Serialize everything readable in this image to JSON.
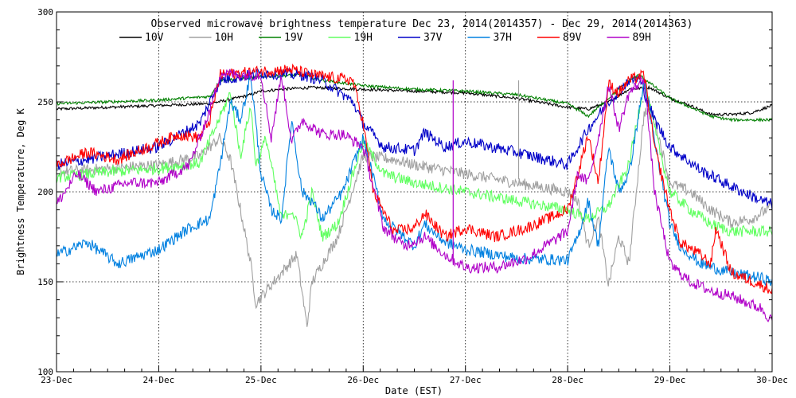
{
  "chart_data": {
    "type": "line",
    "title": "Observed microwave brightness temperature Dec 23, 2014(2014357) - Dec 29, 2014(2014363)",
    "xlabel": "Date (EST)",
    "ylabel": "Brightness Temperature, Deg K",
    "xlim": [
      0,
      7
    ],
    "ylim": [
      100,
      300
    ],
    "x_unit": "days since 23-Dec 00:00",
    "grid": true,
    "categories": [
      "23-Dec",
      "24-Dec",
      "25-Dec",
      "26-Dec",
      "27-Dec",
      "28-Dec",
      "29-Dec",
      "30-Dec"
    ],
    "xticks": [
      0,
      1,
      2,
      3,
      4,
      5,
      6,
      7
    ],
    "yticks": [
      100,
      150,
      200,
      250,
      300
    ],
    "ytick_labels": [
      "100",
      "150",
      "200",
      "250",
      "300"
    ],
    "legend": "top",
    "series": [
      {
        "name": "10V",
        "color": "#000000",
        "x": [
          0,
          0.5,
          1.0,
          1.5,
          1.75,
          1.9,
          2.0,
          2.2,
          2.5,
          3.0,
          3.5,
          4.0,
          4.5,
          5.0,
          5.2,
          5.4,
          5.6,
          5.8,
          6.0,
          6.2,
          6.4,
          6.6,
          6.8,
          7.0
        ],
        "y": [
          246,
          247,
          248,
          249,
          252,
          254,
          256,
          257,
          258,
          257,
          256,
          255,
          252,
          247,
          246,
          250,
          257,
          258,
          252,
          248,
          243,
          243,
          244,
          248
        ]
      },
      {
        "name": "10H",
        "color": "#a0a0a0",
        "x": [
          0,
          0.5,
          1.0,
          1.4,
          1.6,
          1.7,
          1.8,
          1.9,
          1.95,
          2.05,
          2.2,
          2.35,
          2.45,
          2.5,
          2.6,
          2.75,
          3.0,
          3.3,
          3.5,
          4.0,
          4.5,
          5.0,
          5.1,
          5.2,
          5.3,
          5.4,
          5.5,
          5.6,
          5.75,
          5.85,
          6.0,
          6.2,
          6.4,
          6.6,
          6.8,
          7.0
        ],
        "y": [
          211,
          213,
          215,
          220,
          230,
          218,
          190,
          160,
          138,
          145,
          155,
          165,
          125,
          150,
          160,
          175,
          220,
          218,
          215,
          210,
          205,
          200,
          195,
          170,
          185,
          148,
          175,
          160,
          245,
          240,
          205,
          200,
          190,
          183,
          185,
          192
        ]
      },
      {
        "name": "19V",
        "color": "#008000",
        "x": [
          0,
          0.5,
          1.0,
          1.5,
          1.6,
          2.0,
          2.4,
          2.6,
          3.0,
          3.5,
          4.0,
          4.5,
          5.0,
          5.2,
          5.4,
          5.6,
          5.7,
          6.0,
          6.2,
          6.4,
          6.6,
          6.8,
          7.0
        ],
        "y": [
          249,
          250,
          251,
          253,
          262,
          264,
          265,
          262,
          259,
          257,
          256,
          254,
          249,
          242,
          252,
          262,
          265,
          252,
          247,
          242,
          240,
          240,
          240
        ]
      },
      {
        "name": "19H",
        "color": "#60ff60",
        "x": [
          0,
          0.5,
          1.0,
          1.4,
          1.55,
          1.7,
          1.8,
          1.9,
          1.95,
          2.05,
          2.2,
          2.3,
          2.4,
          2.5,
          2.6,
          2.75,
          2.9,
          3.0,
          3.2,
          3.5,
          4.0,
          4.5,
          5.0,
          5.2,
          5.4,
          5.6,
          5.75,
          5.85,
          6.0,
          6.2,
          6.4,
          6.6,
          6.8,
          7.0
        ],
        "y": [
          208,
          211,
          213,
          216,
          235,
          255,
          220,
          248,
          215,
          230,
          185,
          190,
          175,
          200,
          175,
          182,
          210,
          228,
          210,
          205,
          200,
          195,
          190,
          185,
          192,
          215,
          262,
          235,
          200,
          190,
          182,
          178,
          178,
          178
        ]
      },
      {
        "name": "37V",
        "color": "#0000c8",
        "x": [
          0,
          0.5,
          1.0,
          1.4,
          1.6,
          2.0,
          2.4,
          2.6,
          2.9,
          3.0,
          3.2,
          3.5,
          3.6,
          3.8,
          4.0,
          4.5,
          5.0,
          5.2,
          5.4,
          5.6,
          5.7,
          5.85,
          6.0,
          6.3,
          6.6,
          6.9,
          7.0
        ],
        "y": [
          215,
          220,
          225,
          238,
          262,
          266,
          265,
          262,
          250,
          238,
          225,
          223,
          233,
          225,
          228,
          222,
          215,
          235,
          250,
          262,
          263,
          240,
          225,
          212,
          203,
          195,
          193
        ]
      },
      {
        "name": "37H",
        "color": "#0080e0",
        "x": [
          0,
          0.3,
          0.6,
          1.0,
          1.3,
          1.5,
          1.6,
          1.7,
          1.8,
          1.9,
          2.0,
          2.1,
          2.2,
          2.3,
          2.4,
          2.5,
          2.6,
          2.8,
          3.0,
          3.2,
          3.4,
          3.5,
          3.6,
          3.8,
          4.0,
          4.5,
          5.0,
          5.1,
          5.2,
          5.3,
          5.4,
          5.5,
          5.6,
          5.75,
          5.85,
          6.0,
          6.1,
          6.3,
          6.6,
          6.9,
          7.0
        ],
        "y": [
          165,
          172,
          160,
          168,
          180,
          185,
          215,
          250,
          240,
          265,
          210,
          190,
          185,
          240,
          200,
          195,
          185,
          200,
          230,
          185,
          175,
          170,
          182,
          172,
          168,
          163,
          162,
          175,
          195,
          170,
          225,
          200,
          210,
          262,
          228,
          182,
          170,
          160,
          155,
          152,
          150
        ]
      },
      {
        "name": "89V",
        "color": "#ff0000",
        "x": [
          0,
          0.3,
          0.6,
          0.9,
          1.2,
          1.4,
          1.5,
          1.6,
          2.0,
          2.3,
          2.5,
          2.9,
          3.0,
          3.1,
          3.3,
          3.5,
          3.6,
          3.8,
          4.0,
          4.3,
          4.6,
          5.0,
          5.1,
          5.2,
          5.3,
          5.4,
          5.5,
          5.6,
          5.75,
          5.85,
          6.0,
          6.1,
          6.3,
          6.4,
          6.45,
          6.6,
          6.9,
          7.0
        ],
        "y": [
          215,
          222,
          218,
          225,
          232,
          230,
          240,
          265,
          267,
          268,
          265,
          262,
          238,
          200,
          178,
          180,
          188,
          175,
          180,
          175,
          180,
          190,
          210,
          232,
          205,
          260,
          255,
          262,
          265,
          225,
          190,
          172,
          165,
          160,
          180,
          155,
          148,
          145
        ]
      },
      {
        "name": "89H",
        "color": "#b000c8",
        "x": [
          0,
          0.2,
          0.4,
          0.7,
          1.0,
          1.3,
          1.5,
          1.6,
          1.8,
          2.0,
          2.1,
          2.2,
          2.3,
          2.4,
          2.6,
          2.8,
          3.0,
          3.2,
          3.4,
          3.6,
          3.8,
          4.0,
          4.3,
          4.6,
          5.0,
          5.1,
          5.2,
          5.3,
          5.4,
          5.5,
          5.6,
          5.75,
          5.85,
          6.0,
          6.2,
          6.4,
          6.6,
          6.9,
          7.0
        ],
        "y": [
          193,
          210,
          200,
          205,
          205,
          215,
          245,
          266,
          265,
          265,
          230,
          265,
          228,
          240,
          232,
          232,
          225,
          180,
          170,
          175,
          165,
          158,
          158,
          163,
          178,
          210,
          205,
          230,
          260,
          235,
          255,
          263,
          200,
          160,
          150,
          145,
          142,
          135,
          128
        ]
      }
    ],
    "spikes": [
      {
        "series": "89H",
        "x": 3.88,
        "from": 162,
        "to": 262
      },
      {
        "series": "10H",
        "x": 4.52,
        "from": 207,
        "to": 262
      }
    ]
  }
}
